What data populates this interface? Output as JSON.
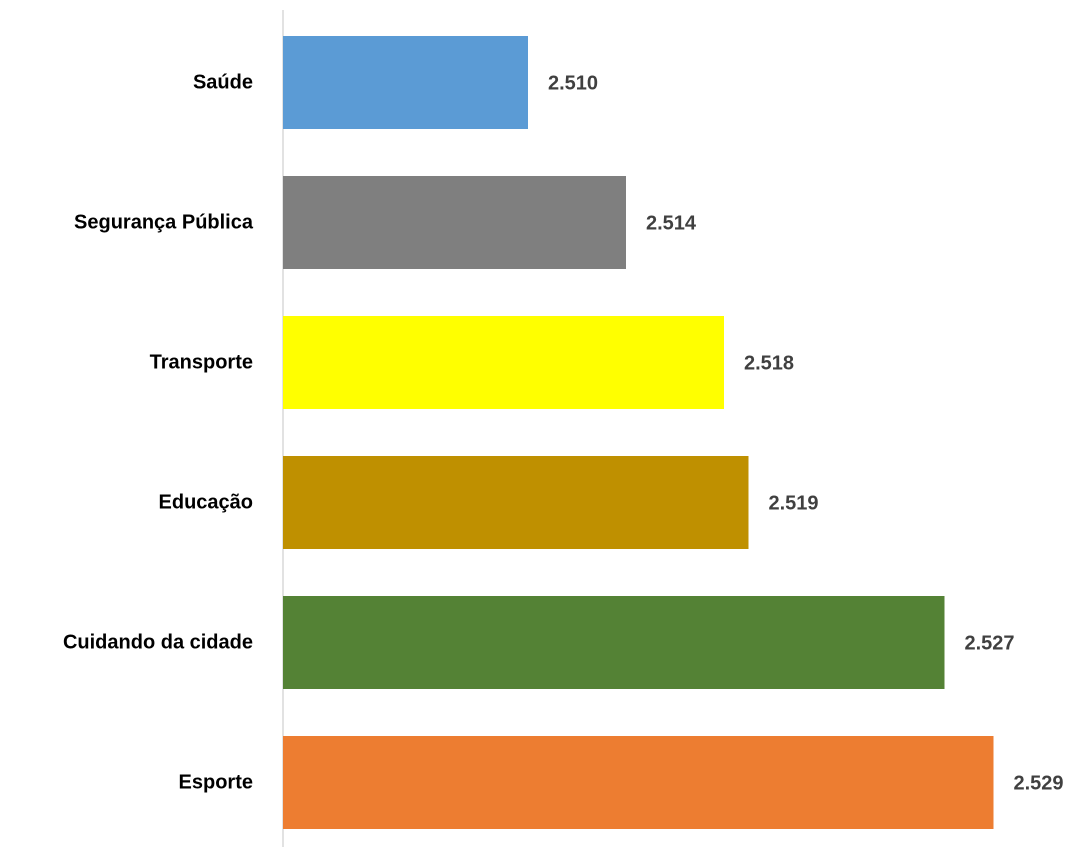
{
  "chart_data": {
    "type": "bar",
    "orientation": "horizontal",
    "categories": [
      "Saúde",
      "Segurança Pública",
      "Transporte",
      "Educação",
      "Cuidando da cidade",
      "Esporte"
    ],
    "values": [
      2510,
      2514,
      2518,
      2519,
      2527,
      2529
    ],
    "value_labels": [
      "2.510",
      "2.514",
      "2.518",
      "2.519",
      "2.527",
      "2.529"
    ],
    "colors": [
      "#5b9bd5",
      "#7f7f7f",
      "#ffff00",
      "#bf9000",
      "#548235",
      "#ed7d31"
    ],
    "xlim": [
      2500,
      2532
    ]
  }
}
